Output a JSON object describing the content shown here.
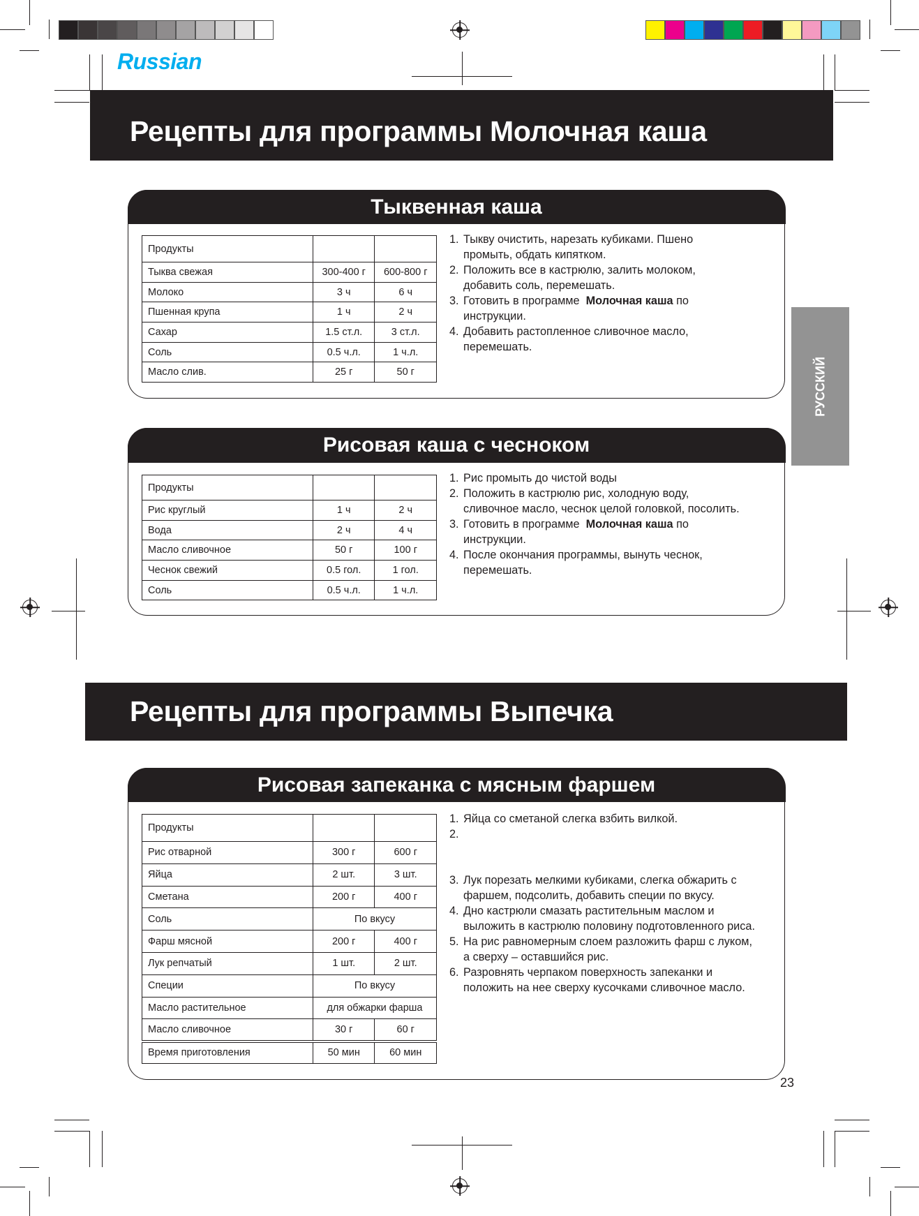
{
  "colors": {
    "grays": [
      "#231f20",
      "#3a3536",
      "#4a4647",
      "#605c5d",
      "#7a7778",
      "#8f8c8d",
      "#a5a3a4",
      "#bdbbbc",
      "#d2d1d1",
      "#e6e5e5",
      "#ffffff"
    ],
    "process": [
      "#fff200",
      "#ec008c",
      "#00aeef",
      "#2e3192",
      "#00a651",
      "#ed1c24",
      "#231f20",
      "#fff799",
      "#f49ac1",
      "#7ed4f7",
      "#939393"
    ],
    "lang_accent": "#00aeef",
    "band": "#231f20",
    "side_tab": "#939393"
  },
  "language_label": "Russian",
  "side_tab_label": "РУССКИЙ",
  "section1_title": "Рецепты для программы Молочная каша",
  "section2_title": "Рецепты для программы Выпечка",
  "page_number": "23",
  "recipes": [
    {
      "title": "Тыквенная каша",
      "header": "Продукты",
      "rows": [
        [
          "Тыква свежая",
          "300-400 г",
          "600-800 г"
        ],
        [
          "Молоко",
          "3 ч",
          "6 ч"
        ],
        [
          "Пшенная крупа",
          "1 ч",
          "2 ч"
        ],
        [
          "Сахар",
          "1.5 ст.л.",
          "3 ст.л."
        ],
        [
          "Соль",
          "0.5 ч.л.",
          "1 ч.л."
        ],
        [
          "Масло слив.",
          "25 г",
          "50 г"
        ]
      ],
      "steps": [
        {
          "num": "1.",
          "lines": [
            [
              {
                "t": "Тыкву очистить, нарезать кубиками. Пшено"
              }
            ],
            [
              {
                "t": "промыть, обдать кипятком."
              }
            ]
          ]
        },
        {
          "num": "2.",
          "lines": [
            [
              {
                "t": "Положить все в кастрюлю, залить молоком,"
              }
            ],
            [
              {
                "t": "добавить соль, перемешать."
              }
            ]
          ]
        },
        {
          "num": "3.",
          "lines": [
            [
              {
                "t": "Готовить в программе  "
              },
              {
                "t": "Молочная каша",
                "b": true
              },
              {
                "t": " по"
              }
            ],
            [
              {
                "t": "инструкции."
              }
            ]
          ]
        },
        {
          "num": "4.",
          "lines": [
            [
              {
                "t": "Добавить растопленное сливочное масло,"
              }
            ],
            [
              {
                "t": "перемешать."
              }
            ]
          ]
        }
      ]
    },
    {
      "title": "Рисовая каша с чесноком",
      "header": "Продукты",
      "rows": [
        [
          "Рис круглый",
          "1 ч",
          "2 ч"
        ],
        [
          "Вода",
          "2 ч",
          "4 ч"
        ],
        [
          "Масло сливочное",
          "50 г",
          "100 г"
        ],
        [
          "Чеснок свежий",
          "0.5 гол.",
          "1 гол."
        ],
        [
          "Соль",
          "0.5 ч.л.",
          "1 ч.л."
        ]
      ],
      "steps": [
        {
          "num": "1.",
          "lines": [
            [
              {
                "t": "Рис промыть до чистой воды"
              }
            ]
          ]
        },
        {
          "num": "2.",
          "lines": [
            [
              {
                "t": "Положить в кастрюлю рис, холодную воду,"
              }
            ],
            [
              {
                "t": "сливочное масло, чеснок целой головкой, посолить."
              }
            ]
          ]
        },
        {
          "num": "3.",
          "lines": [
            [
              {
                "t": "Готовить в программе  "
              },
              {
                "t": "Молочная каша",
                "b": true
              },
              {
                "t": " по"
              }
            ],
            [
              {
                "t": "инструкции."
              }
            ]
          ]
        },
        {
          "num": "4.",
          "lines": [
            [
              {
                "t": "После окончания программы, вынуть чеснок,"
              }
            ],
            [
              {
                "t": "перемешать."
              }
            ]
          ]
        }
      ]
    },
    {
      "title": "Рисовая запеканка с мясным фаршем",
      "header": "Продукты",
      "rows": [
        [
          "Рис отварной",
          "300 г",
          "600 г"
        ],
        [
          "Яйца",
          "2 шт.",
          "3 шт."
        ],
        [
          "Сметана",
          "200 г",
          "400 г"
        ],
        [
          "Соль",
          "По вкусу"
        ],
        [
          "Фарш мясной",
          "200 г",
          "400 г"
        ],
        [
          "Лук репчатый",
          "1 шт.",
          "2 шт."
        ],
        [
          "Специи",
          "По вкусу"
        ],
        [
          "Масло растительное",
          "для обжарки фарша"
        ],
        [
          "Масло сливочное",
          "30 г",
          "60 г"
        ],
        [
          "Время приготовления",
          "50 мин",
          "60 мин"
        ]
      ],
      "steps": [
        {
          "num": "1.",
          "lines": [
            [
              {
                "t": "Яйца со сметаной слегка взбить вилкой."
              }
            ]
          ]
        },
        {
          "num": "2.",
          "lines": [
            [
              {
                "t": ""
              }
            ],
            [
              {
                "t": ""
              }
            ],
            [
              {
                "t": ""
              }
            ]
          ]
        },
        {
          "num": "3.",
          "lines": [
            [
              {
                "t": "Лук порезать мелкими кубиками, слегка обжарить с"
              }
            ],
            [
              {
                "t": "фаршем, подсолить, добавить специи по вкусу."
              }
            ]
          ]
        },
        {
          "num": "4.",
          "lines": [
            [
              {
                "t": "Дно кастрюли смазать растительным маслом и"
              }
            ],
            [
              {
                "t": "выложить в кастрюлю половину подготовленного риса."
              }
            ]
          ]
        },
        {
          "num": "5.",
          "lines": [
            [
              {
                "t": "На рис равномерным слоем разложить фарш с луком,"
              }
            ],
            [
              {
                "t": "а сверху – оставшийся рис."
              }
            ]
          ]
        },
        {
          "num": "6.",
          "lines": [
            [
              {
                "t": "Разровнять черпаком поверхность запеканки и"
              }
            ],
            [
              {
                "t": "положить на нее сверху кусочками сливочное масло."
              }
            ]
          ]
        }
      ]
    }
  ]
}
